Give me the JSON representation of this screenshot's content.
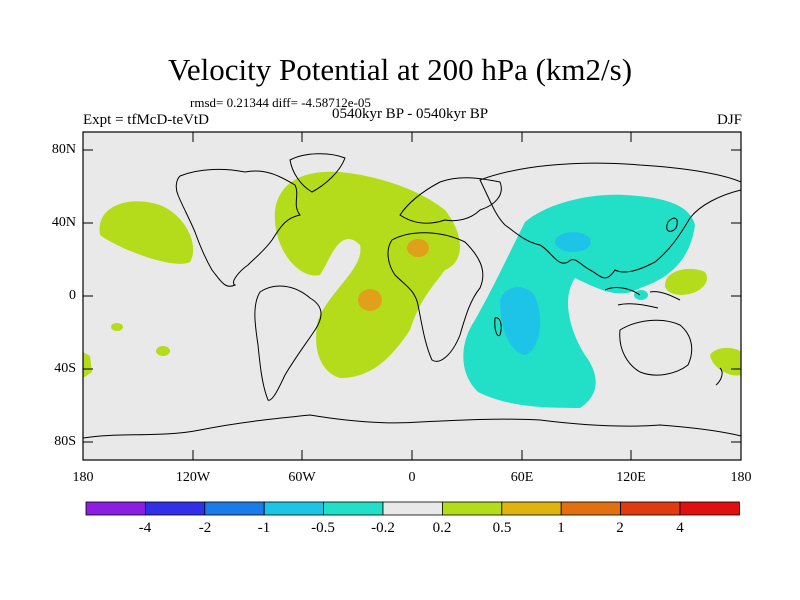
{
  "title": "Velocity Potential at 200 hPa (km2/s)",
  "stats_line": "rmsd= 0.21344 diff= -4.58712e-05",
  "experiment": "Expt = tfMcD-teVtD",
  "period": "0540kyr BP - 0540kyr BP",
  "season": "DJF",
  "map": {
    "x_ticks": [
      "180",
      "120W",
      "60W",
      "0",
      "60E",
      "120E",
      "180"
    ],
    "y_ticks": [
      "80N",
      "40N",
      "0",
      "40S",
      "80S"
    ],
    "background_color": "#e9e9e9"
  },
  "colorbar": {
    "labels": [
      "-4",
      "-2",
      "-1",
      "-0.5",
      "-0.2",
      "0.2",
      "0.5",
      "1",
      "2",
      "4"
    ],
    "colors": [
      "#8b1ee0",
      "#3230e6",
      "#1a7ce8",
      "#1ec4e8",
      "#22e0c8",
      "#e9e9e9",
      "#b4dc1a",
      "#e0b40e",
      "#e07010",
      "#e03a10",
      "#e01010"
    ]
  },
  "contours": {
    "positive_fill": "#b4dc1a",
    "positive_strong": "#e0a01a",
    "negative_fill": "#22e0c8",
    "negative_strong": "#1ec4e8"
  }
}
